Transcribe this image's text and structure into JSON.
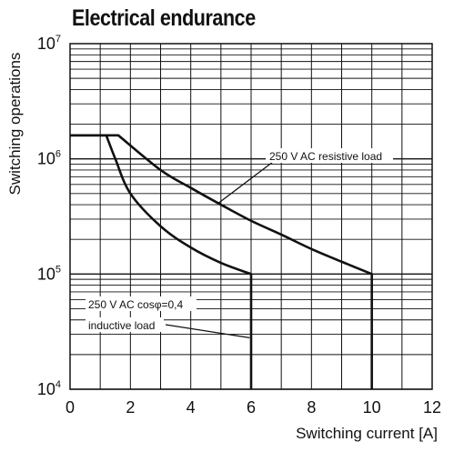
{
  "chart_data": {
    "type": "line",
    "title": "Electrical endurance",
    "xlabel": "Switching current [A]",
    "ylabel": "Switching operations",
    "xlim": [
      0,
      12
    ],
    "ylim": [
      10000,
      10000000
    ],
    "yscale": "log",
    "x_ticks": [
      0,
      2,
      4,
      6,
      8,
      10,
      12
    ],
    "y_ticks": [
      {
        "base": "10",
        "exp": "4",
        "value": 10000
      },
      {
        "base": "10",
        "exp": "5",
        "value": 100000
      },
      {
        "base": "10",
        "exp": "6",
        "value": 1000000
      },
      {
        "base": "10",
        "exp": "7",
        "value": 10000000
      }
    ],
    "grid": true,
    "series": [
      {
        "name": "250 V AC resistive load",
        "x": [
          0,
          1.6,
          3,
          4,
          5,
          6,
          7,
          8,
          9,
          10,
          10,
          10
        ],
        "y": [
          1600000,
          1600000,
          800000,
          560000,
          400000,
          290000,
          220000,
          165000,
          128000,
          100000,
          50000,
          10000
        ]
      },
      {
        "name": "250 V AC cosφ=0,4 inductive load",
        "x": [
          0,
          1.2,
          1.5,
          2,
          3,
          4,
          5,
          6,
          6,
          6
        ],
        "y": [
          1600000,
          1600000,
          1000000,
          500000,
          260000,
          170000,
          125000,
          100000,
          50000,
          10000
        ]
      }
    ],
    "annotations": [
      {
        "text": "250 V AC resistive load"
      },
      {
        "line1": "250 V AC cosφ=0,4",
        "line2": "inductive load"
      }
    ]
  }
}
